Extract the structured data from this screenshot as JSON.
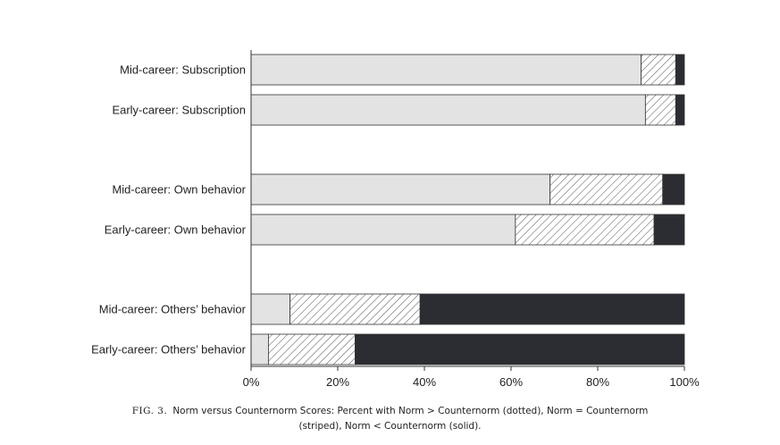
{
  "chart_data": {
    "type": "bar",
    "orientation": "horizontal",
    "stacked": true,
    "categories": [
      "Mid-career: Subscription",
      "Early-career: Subscription",
      "Mid-career: Own behavior",
      "Early-career: Own behavior",
      "Mid-career: Others’ behavior",
      "Early-career: Others’ behavior"
    ],
    "series": [
      {
        "values": [
          90,
          91,
          69,
          61,
          9,
          4
        ],
        "fill": "dotted",
        "color": "#e3e3e3"
      },
      {
        "values": [
          8,
          7,
          26,
          32,
          30,
          20
        ],
        "fill": "striped",
        "color": "#ffffff"
      },
      {
        "values": [
          2,
          2,
          5,
          7,
          61,
          76
        ],
        "fill": "solid",
        "color": "#2b2d33"
      }
    ],
    "xlim": [
      0,
      100
    ],
    "xticks": [
      "0%",
      "20%",
      "40%",
      "60%",
      "80%",
      "100%"
    ],
    "xlabel": "",
    "ylabel": "",
    "grid": false,
    "legend": "none"
  },
  "caption": {
    "fig_num": "FIG. 3.",
    "text": "Norm versus Counternorm Scores: Percent with Norm > Counternorm (dotted), Norm = Counternorm",
    "text2": "(striped), Norm < Counternorm (solid)."
  }
}
